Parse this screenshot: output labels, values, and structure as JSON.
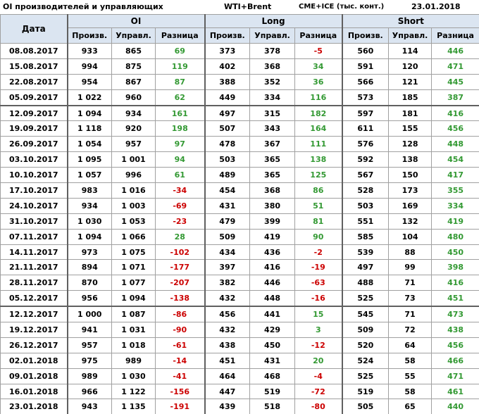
{
  "title": {
    "name": "OI производителей и управляющих",
    "market": "WTI+Brent",
    "source": "CME+ICE (тыс. конт.)",
    "date": "23.01.2018"
  },
  "table": {
    "date_header": "Дата",
    "groups": [
      "OI",
      "Long",
      "Short"
    ],
    "subheaders": [
      "Произв.",
      "Управл.",
      "Разница"
    ],
    "rows": [
      [
        "08.08.2017",
        "933",
        "865",
        "69",
        "373",
        "378",
        "-5",
        "560",
        "114",
        "446"
      ],
      [
        "15.08.2017",
        "994",
        "875",
        "119",
        "402",
        "368",
        "34",
        "591",
        "120",
        "471"
      ],
      [
        "22.08.2017",
        "954",
        "867",
        "87",
        "388",
        "352",
        "36",
        "566",
        "121",
        "445"
      ],
      [
        "05.09.2017",
        "1 022",
        "960",
        "62",
        "449",
        "334",
        "116",
        "573",
        "185",
        "387"
      ],
      [
        "12.09.2017",
        "1 094",
        "934",
        "161",
        "497",
        "315",
        "182",
        "597",
        "181",
        "416"
      ],
      [
        "19.09.2017",
        "1 118",
        "920",
        "198",
        "507",
        "343",
        "164",
        "611",
        "155",
        "456"
      ],
      [
        "26.09.2017",
        "1 054",
        "957",
        "97",
        "478",
        "367",
        "111",
        "576",
        "128",
        "448"
      ],
      [
        "03.10.2017",
        "1 095",
        "1 001",
        "94",
        "503",
        "365",
        "138",
        "592",
        "138",
        "454"
      ],
      [
        "10.10.2017",
        "1 057",
        "996",
        "61",
        "489",
        "365",
        "125",
        "567",
        "150",
        "417"
      ],
      [
        "17.10.2017",
        "983",
        "1 016",
        "-34",
        "454",
        "368",
        "86",
        "528",
        "173",
        "355"
      ],
      [
        "24.10.2017",
        "934",
        "1 003",
        "-69",
        "431",
        "380",
        "51",
        "503",
        "169",
        "334"
      ],
      [
        "31.10.2017",
        "1 030",
        "1 053",
        "-23",
        "479",
        "399",
        "81",
        "551",
        "132",
        "419"
      ],
      [
        "07.11.2017",
        "1 094",
        "1 066",
        "28",
        "509",
        "419",
        "90",
        "585",
        "104",
        "480"
      ],
      [
        "14.11.2017",
        "973",
        "1 075",
        "-102",
        "434",
        "436",
        "-2",
        "539",
        "88",
        "450"
      ],
      [
        "21.11.2017",
        "894",
        "1 071",
        "-177",
        "397",
        "416",
        "-19",
        "497",
        "99",
        "398"
      ],
      [
        "28.11.2017",
        "870",
        "1 077",
        "-207",
        "382",
        "446",
        "-63",
        "488",
        "71",
        "416"
      ],
      [
        "05.12.2017",
        "956",
        "1 094",
        "-138",
        "432",
        "448",
        "-16",
        "525",
        "73",
        "451"
      ],
      [
        "12.12.2017",
        "1 000",
        "1 087",
        "-86",
        "456",
        "441",
        "15",
        "545",
        "71",
        "473"
      ],
      [
        "19.12.2017",
        "941",
        "1 031",
        "-90",
        "432",
        "429",
        "3",
        "509",
        "72",
        "438"
      ],
      [
        "26.12.2017",
        "957",
        "1 018",
        "-61",
        "438",
        "450",
        "-12",
        "520",
        "64",
        "456"
      ],
      [
        "02.01.2018",
        "975",
        "989",
        "-14",
        "451",
        "431",
        "20",
        "524",
        "58",
        "466"
      ],
      [
        "09.01.2018",
        "989",
        "1 030",
        "-41",
        "464",
        "468",
        "-4",
        "525",
        "55",
        "471"
      ],
      [
        "16.01.2018",
        "966",
        "1 122",
        "-156",
        "447",
        "519",
        "-72",
        "519",
        "58",
        "461"
      ],
      [
        "23.01.2018",
        "943",
        "1 135",
        "-191",
        "439",
        "518",
        "-80",
        "505",
        "65",
        "440"
      ]
    ]
  },
  "colors": {
    "positive": "#339933",
    "negative": "#cc0000"
  }
}
